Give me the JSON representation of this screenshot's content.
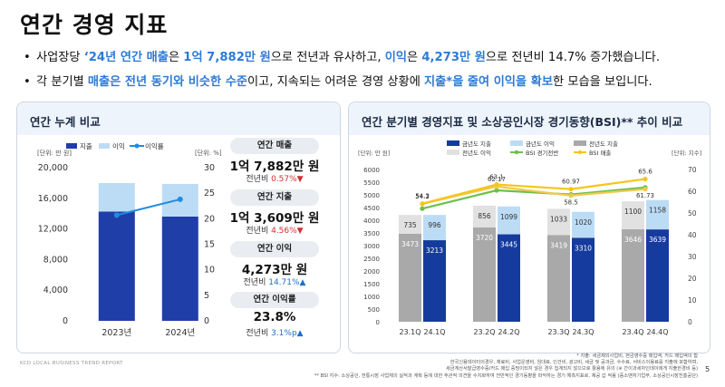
{
  "header": {
    "title": "연간 경영 지표"
  },
  "bullets": [
    {
      "parts": [
        {
          "text": "사업장당 ",
          "style": "plain"
        },
        {
          "text": "‘24년 연간 매출",
          "style": "hl"
        },
        {
          "text": "은 ",
          "style": "plain"
        },
        {
          "text": "1억 7,882만 원",
          "style": "hl"
        },
        {
          "text": "으로 전년과 유사하고, ",
          "style": "plain"
        },
        {
          "text": "이익",
          "style": "hl"
        },
        {
          "text": "은 ",
          "style": "plain"
        },
        {
          "text": "4,273만 원",
          "style": "hl"
        },
        {
          "text": "으로 전년비 14.7% 증가했습니다.",
          "style": "plain"
        }
      ]
    },
    {
      "parts": [
        {
          "text": "각 분기별 ",
          "style": "plain"
        },
        {
          "text": "매출은 전년 동기와 비슷한 수준",
          "style": "hl"
        },
        {
          "text": "이고, 지속되는 어려운 경영 상황에 ",
          "style": "plain"
        },
        {
          "text": "지출*을 줄여 이익을 확보",
          "style": "hl"
        },
        {
          "text": "한 모습을 보입니다.",
          "style": "plain"
        }
      ]
    }
  ],
  "left_panel": {
    "title": "연간 누계 비교",
    "kpis": [
      {
        "title": "연간 매출",
        "value": "1억 7,882만 원",
        "sub_label": "전년비 ",
        "sub_value": "0.57%▼",
        "trend": "down"
      },
      {
        "title": "연간 지출",
        "value": "1억 3,609만 원",
        "sub_label": "전년비 ",
        "sub_value": "4.56%▼",
        "trend": "down"
      },
      {
        "title": "연간 이익",
        "value": "4,273만 원",
        "sub_label": "전년비 ",
        "sub_value": "14.71%▲",
        "trend": "up"
      },
      {
        "title": "연간 이익률",
        "value": "23.8%",
        "sub_label": "전년비 ",
        "sub_value": "3.1%p▲",
        "trend": "up"
      }
    ]
  },
  "right_panel": {
    "title": "연간 분기별 경영지표 및 소상공인시장 경기동향(BSI)** 추이 비교"
  },
  "chart_data": [
    {
      "type": "bar",
      "stacked": true,
      "categories": [
        "2023년",
        "2024년"
      ],
      "y_unit_label": "[단위: 만 원]",
      "y2_unit_label": "[단위: %]",
      "ylim": [
        0,
        20000
      ],
      "yticks": [
        0,
        4000,
        8000,
        12000,
        16000,
        20000
      ],
      "ytick_labels": [
        "0",
        "4,000",
        "8,000",
        "12,000",
        "16,000",
        "20,000"
      ],
      "y2lim": [
        0,
        30
      ],
      "y2ticks": [
        0,
        5,
        10,
        15,
        20,
        25,
        30
      ],
      "legend": [
        "지출",
        "이익",
        "이익률"
      ],
      "series": [
        {
          "name": "지출",
          "values": [
            14260,
            13609
          ],
          "color": "#1f3ea8"
        },
        {
          "name": "이익",
          "values": [
            3725,
            4273
          ],
          "color": "#bcdcf5"
        },
        {
          "name": "이익률",
          "values": [
            20.7,
            23.8
          ],
          "color": "#1e8be0",
          "axis": "y2",
          "kind": "line"
        }
      ]
    },
    {
      "type": "bar",
      "groups": [
        {
          "label": "23.1Q",
          "prev": true,
          "expense": 3473,
          "profit": 735
        },
        {
          "label": "24.1Q",
          "prev": false,
          "expense": 3213,
          "profit": 996
        },
        {
          "label": "23.2Q",
          "prev": true,
          "expense": 3720,
          "profit": 856
        },
        {
          "label": "24.2Q",
          "prev": false,
          "expense": 3445,
          "profit": 1099
        },
        {
          "label": "23.3Q",
          "prev": true,
          "expense": 3419,
          "profit": 1033
        },
        {
          "label": "24.3Q",
          "prev": false,
          "expense": 3310,
          "profit": 1020
        },
        {
          "label": "23.4Q",
          "prev": true,
          "expense": 3646,
          "profit": 1100
        },
        {
          "label": "24.4Q",
          "prev": false,
          "expense": 3639,
          "profit": 1158
        }
      ],
      "y_unit_label": "[단위: 만 원]",
      "y2_unit_label": "[단위: 지수]",
      "ylim": [
        0,
        6000
      ],
      "yticks": [
        0,
        500,
        1000,
        1500,
        2000,
        2500,
        3000,
        3500,
        4000,
        4500,
        5000,
        5500,
        6000
      ],
      "y2lim": [
        0,
        70
      ],
      "y2ticks": [
        0,
        10,
        20,
        30,
        40,
        50,
        60,
        70
      ],
      "legend": [
        "금년도 지출",
        "금년도 이익",
        "전년도 지출",
        "전년도 이익",
        "BSI 경기전반",
        "BSI 매출"
      ],
      "bsi_overall": {
        "name": "BSI 경기전반",
        "x": [
          "1Q",
          "2Q",
          "3Q",
          "4Q"
        ],
        "values": [
          52.0,
          60.4,
          58.5,
          61.73
        ],
        "labels": [
          "",
          "",
          "58.5",
          "61.73"
        ],
        "color": "#6cc04a"
      },
      "bsi_sales": {
        "name": "BSI 매출",
        "x": [
          "1Q",
          "2Q",
          "3Q",
          "4Q"
        ],
        "values_prev": [
          54.2,
          62.17,
          58.0,
          60.97
        ],
        "values": [
          54.3,
          63.1,
          60.97,
          65.6
        ],
        "labels_prev": [
          "54.2",
          "62.17",
          "",
          ""
        ],
        "labels": [
          "54.3",
          "63.1",
          "60.97",
          "65.6"
        ],
        "color": "#f5c518"
      },
      "colors": {
        "cur_expense": "#163b9e",
        "cur_profit": "#bcdcf5",
        "prev_expense": "#a9a9a9",
        "prev_profit": "#e1e1e1"
      }
    }
  ],
  "notes": {
    "line1": "* 지출: 세금제외사업비, 현금영수증 매입액, 카드 매입액의 합",
    "line2": "한국신용데이터의경우, 재료비, 사업운영비, 임대료, 인건비, 광고비, 세금 및 공과금, 수수료, 서비스이용료를 지출에 포함하며,",
    "line3": "세금계산서발급영수증/카드 매입 증빙이되지 않은 경우 집계되지 않으므로 활용에 유의 (※ 간이과세자인데이에게 지출한경비 등)",
    "line4": "** BSI 지수: 소상공인, 전통시장 사업체의 실적과 계획 등에 대한 주관적 의견을 수치화하여 전반적인 경기동향을 파악하는 경기 예측지표로, 제공 갑 적용 (중소벤처기업부, 소상공인시장진흥공단)"
  },
  "footer": {
    "report": "KCD LOCAL BUSINESS TREND REPORT",
    "page": "5"
  }
}
